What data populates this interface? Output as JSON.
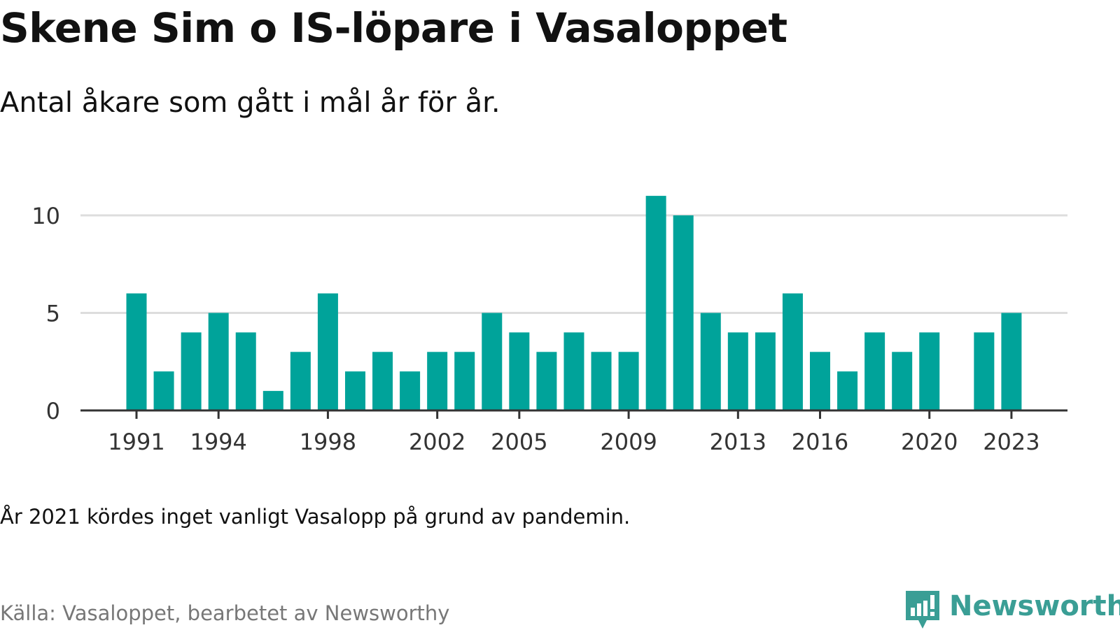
{
  "title": "Skene Sim o IS-löpare i Vasaloppet",
  "subtitle": "Antal åkare som gått i mål år för år.",
  "note": "År 2021 kördes inget vanligt Vasalopp på grund av pandemin.",
  "source": "Källa: Vasaloppet, bearbetet av Newsworthy",
  "brand": {
    "name": "Newsworthy",
    "color": "#3a9e95",
    "icon": "newsworthy-logo-icon"
  },
  "chart_data": {
    "type": "bar",
    "x": [
      1991,
      1992,
      1993,
      1994,
      1995,
      1996,
      1997,
      1998,
      1999,
      2000,
      2001,
      2002,
      2003,
      2004,
      2005,
      2006,
      2007,
      2008,
      2009,
      2010,
      2011,
      2012,
      2013,
      2014,
      2015,
      2016,
      2017,
      2018,
      2019,
      2020,
      2021,
      2022,
      2023
    ],
    "values": [
      6,
      2,
      4,
      5,
      4,
      1,
      3,
      6,
      2,
      3,
      2,
      3,
      3,
      5,
      4,
      3,
      4,
      3,
      3,
      11,
      10,
      5,
      4,
      4,
      6,
      3,
      2,
      4,
      3,
      4,
      null,
      4,
      5
    ],
    "x_ticks": [
      1991,
      1994,
      1998,
      2002,
      2005,
      2009,
      2013,
      2016,
      2020,
      2023
    ],
    "y_ticks": [
      0,
      5,
      10
    ],
    "ylim": [
      0,
      11
    ],
    "xlim": [
      1991,
      2023
    ],
    "bar_color": "#00a39a",
    "grid": true,
    "grid_color": "#dddddd",
    "axis_color": "#333333"
  }
}
